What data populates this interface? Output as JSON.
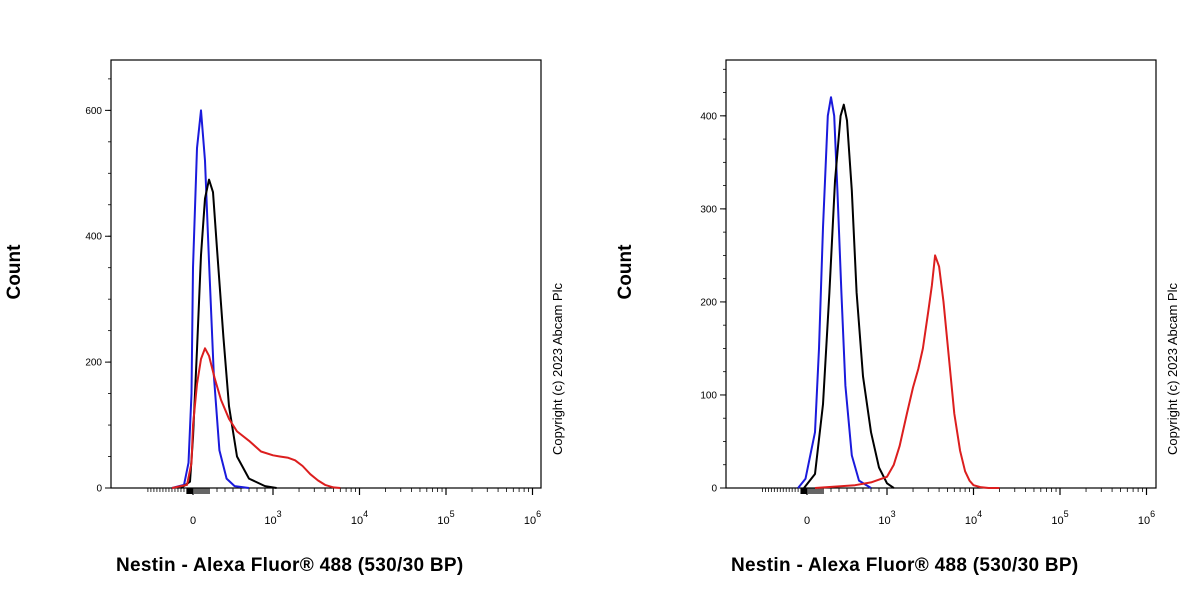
{
  "chart_data": [
    {
      "type": "line",
      "title": "",
      "xlabel": "Nestin - Alexa Fluor® 488 (530/30 BP)",
      "ylabel": "Count",
      "xscale": "biexponential",
      "x_tick_labels": [
        "0",
        "10^3",
        "10^4",
        "10^5",
        "10^6"
      ],
      "y_ticks": [
        0,
        200,
        400,
        600
      ],
      "ylim": [
        0,
        680
      ],
      "grid": false,
      "annotation": "Copyright (c) 2023 Abcam Plc",
      "series": [
        {
          "color": "#1a1adc",
          "x": [
            -700,
            -300,
            -150,
            -50,
            0,
            50,
            100,
            150,
            200,
            260,
            330,
            420,
            520,
            700
          ],
          "y": [
            0,
            5,
            40,
            150,
            350,
            540,
            600,
            520,
            360,
            180,
            60,
            15,
            3,
            0
          ]
        },
        {
          "color": "#000000",
          "x": [
            -400,
            -100,
            0,
            50,
            100,
            150,
            200,
            250,
            300,
            380,
            450,
            550,
            700,
            900,
            1100
          ],
          "y": [
            0,
            10,
            80,
            220,
            370,
            460,
            490,
            470,
            380,
            240,
            130,
            50,
            15,
            3,
            0
          ]
        },
        {
          "color": "#dc1e1e",
          "x": [
            -700,
            -200,
            -50,
            0,
            50,
            100,
            150,
            200,
            270,
            350,
            450,
            550,
            700,
            850,
            1000,
            1200,
            1500,
            1800,
            2200,
            2700,
            3300,
            4000,
            5000,
            6000
          ],
          "y": [
            0,
            5,
            40,
            100,
            165,
            205,
            222,
            210,
            175,
            140,
            110,
            90,
            75,
            58,
            52,
            50,
            48,
            44,
            35,
            22,
            12,
            5,
            1,
            0
          ]
        }
      ]
    },
    {
      "type": "line",
      "title": "",
      "xlabel": "Nestin - Alexa Fluor® 488 (530/30 BP)",
      "ylabel": "Count",
      "xscale": "biexponential",
      "x_tick_labels": [
        "0",
        "10^3",
        "10^4",
        "10^5",
        "10^6"
      ],
      "y_ticks": [
        0,
        100,
        200,
        300,
        400
      ],
      "ylim": [
        0,
        460
      ],
      "grid": false,
      "annotation": "Copyright (c) 2023 Abcam Plc",
      "series": [
        {
          "color": "#1a1adc",
          "x": [
            -300,
            -50,
            100,
            150,
            200,
            260,
            300,
            340,
            380,
            430,
            480,
            560,
            650,
            800
          ],
          "y": [
            0,
            10,
            60,
            150,
            280,
            400,
            420,
            400,
            320,
            210,
            110,
            35,
            8,
            0
          ]
        },
        {
          "color": "#000000",
          "x": [
            -100,
            100,
            200,
            280,
            350,
            420,
            460,
            500,
            560,
            620,
            700,
            800,
            900,
            1000,
            1200
          ],
          "y": [
            0,
            15,
            90,
            210,
            330,
            400,
            412,
            395,
            320,
            210,
            120,
            60,
            22,
            5,
            0
          ]
        },
        {
          "color": "#dc1e1e",
          "x": [
            100,
            600,
            800,
            1000,
            1200,
            1400,
            1700,
            2000,
            2300,
            2600,
            3000,
            3300,
            3600,
            4000,
            4500,
            5200,
            6000,
            7000,
            8000,
            9000,
            10000,
            12000,
            15000,
            20000
          ],
          "y": [
            0,
            3,
            6,
            12,
            25,
            45,
            80,
            108,
            128,
            150,
            190,
            218,
            250,
            238,
            200,
            140,
            80,
            40,
            18,
            8,
            3,
            1,
            0,
            0
          ]
        }
      ]
    }
  ]
}
